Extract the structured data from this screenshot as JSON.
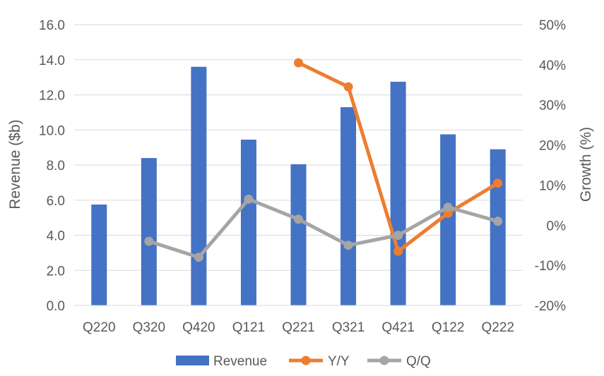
{
  "chart_data": {
    "type": "bar",
    "categories": [
      "Q220",
      "Q320",
      "Q420",
      "Q121",
      "Q221",
      "Q321",
      "Q421",
      "Q122",
      "Q222"
    ],
    "series": [
      {
        "name": "Revenue",
        "type": "bar",
        "axis": "left",
        "color": "#4472C4",
        "values": [
          5.75,
          8.4,
          13.6,
          9.45,
          8.05,
          11.3,
          12.75,
          9.75,
          8.9
        ]
      },
      {
        "name": "Y/Y",
        "type": "line",
        "axis": "right",
        "color": "#ED7D31",
        "values": [
          null,
          null,
          null,
          null,
          40.5,
          34.5,
          -6.5,
          3.0,
          10.5
        ]
      },
      {
        "name": "Q/Q",
        "type": "line",
        "axis": "right",
        "color": "#A5A5A5",
        "values": [
          null,
          -4.0,
          -8.0,
          6.5,
          1.5,
          -5.0,
          -2.5,
          4.5,
          1.0
        ]
      }
    ],
    "xlabel": "",
    "ylabel": "Revenue ($b)",
    "y2label": "Growth (%)",
    "ylim": [
      0,
      16
    ],
    "y2lim": [
      -20,
      50
    ],
    "yticks": [
      "0.0",
      "2.0",
      "4.0",
      "6.0",
      "8.0",
      "10.0",
      "12.0",
      "14.0",
      "16.0"
    ],
    "y2ticks": [
      "-20%",
      "-10%",
      "0%",
      "10%",
      "20%",
      "30%",
      "40%",
      "50%"
    ],
    "grid": true,
    "legend_position": "bottom"
  }
}
